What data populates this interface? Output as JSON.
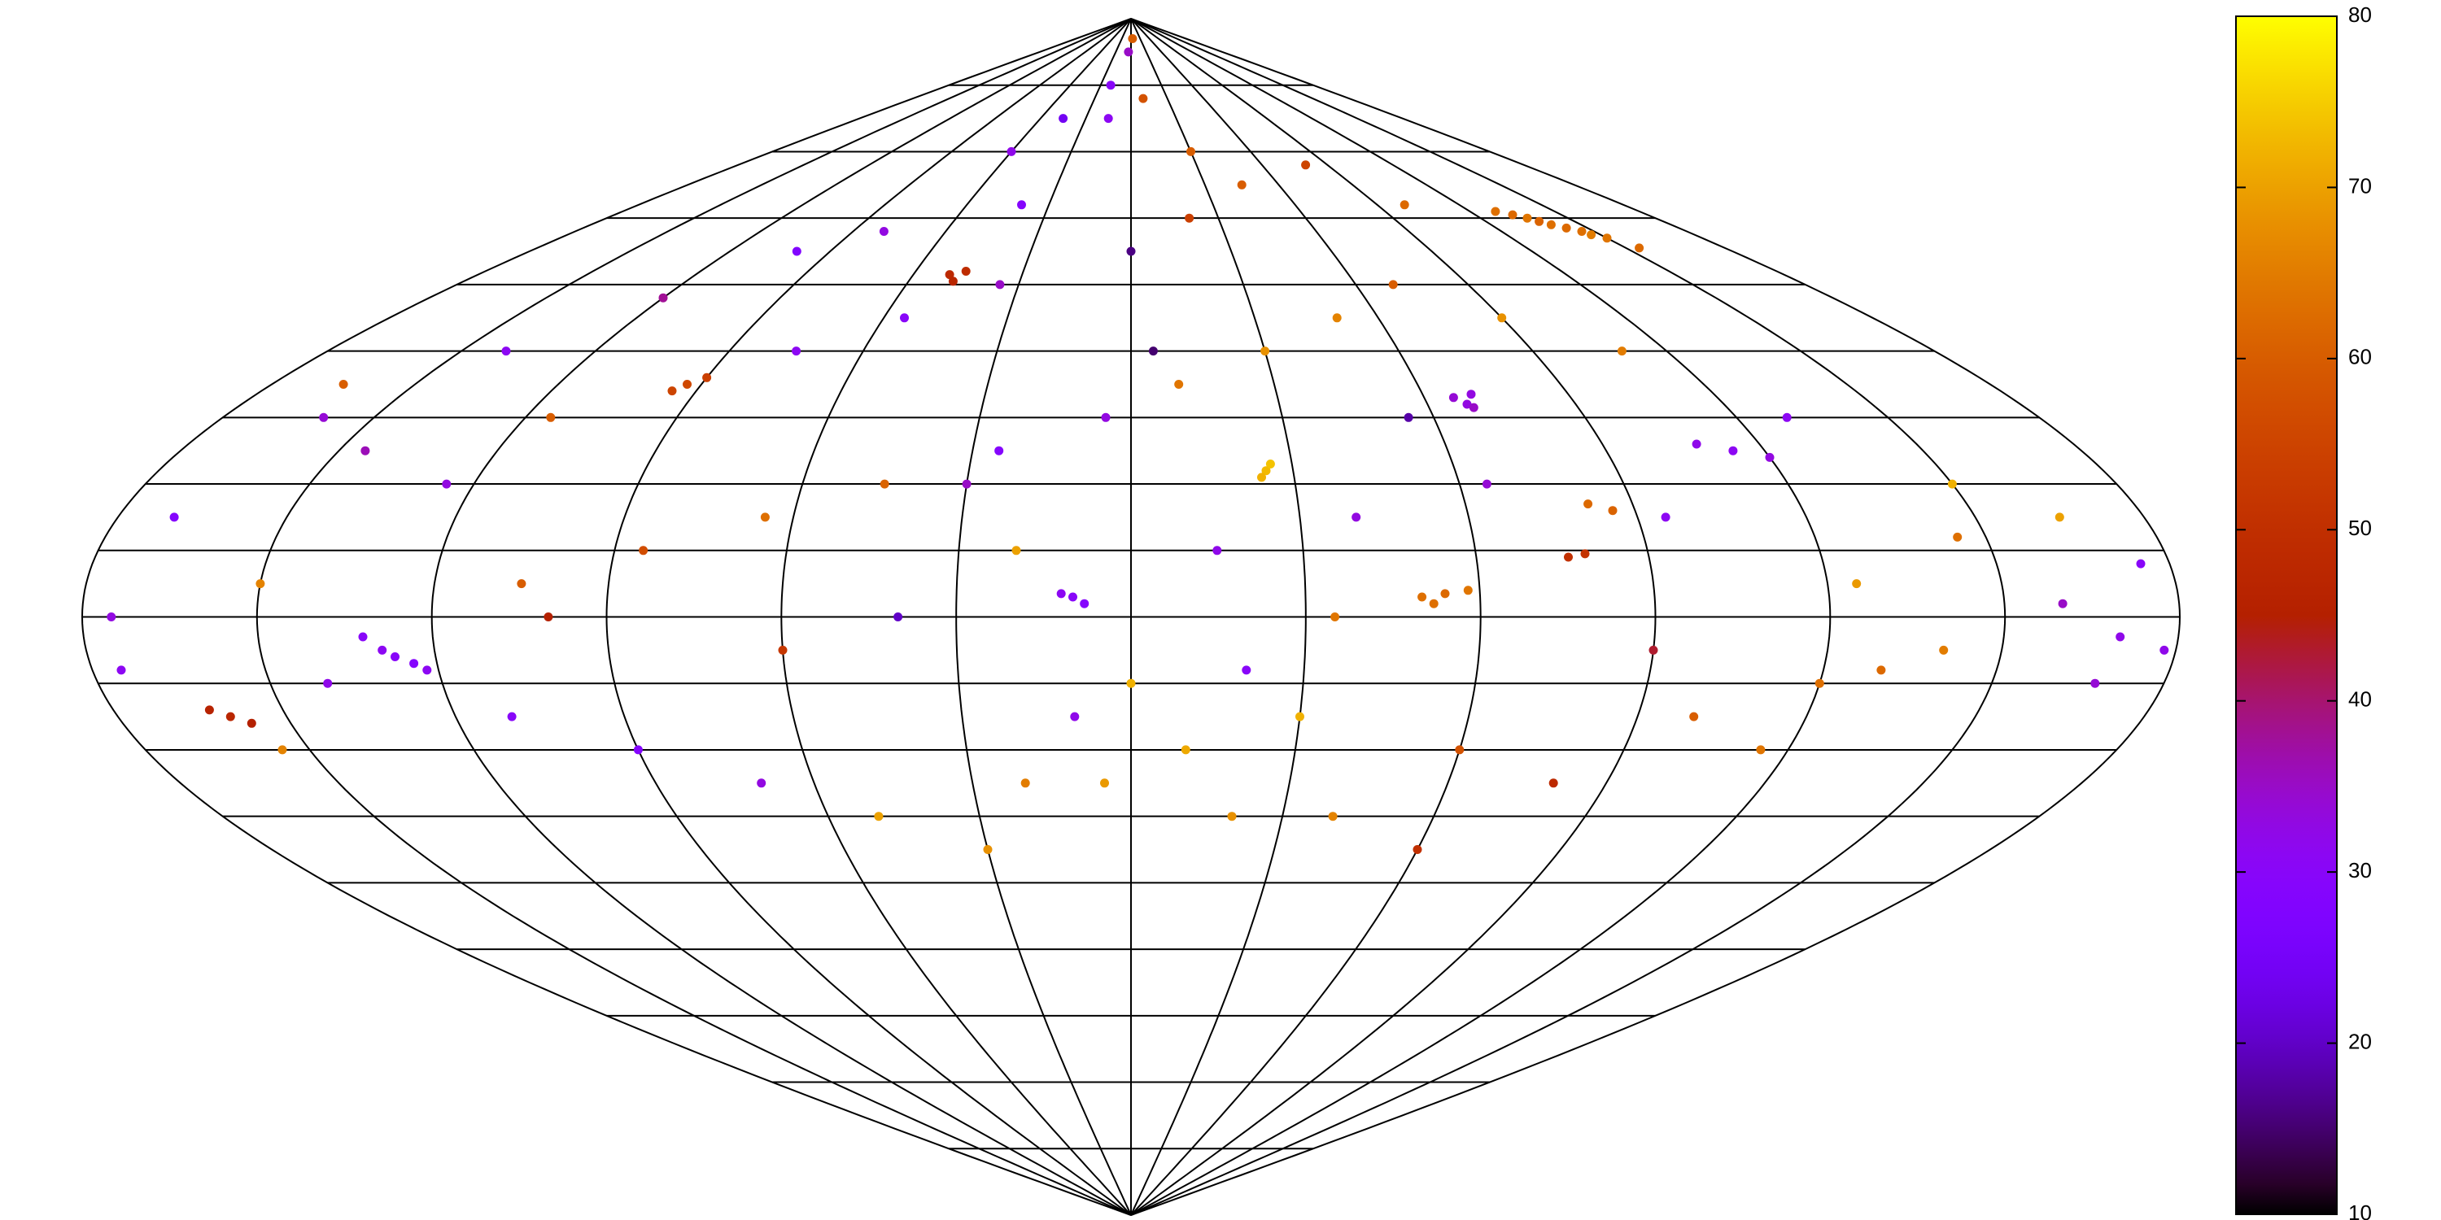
{
  "chart_data": {
    "type": "scatter",
    "projection": "sinusoidal",
    "colormap": "gnuplot",
    "xlim": [
      -180,
      180
    ],
    "ylim": [
      -90,
      90
    ],
    "meridians": [
      -180,
      -150,
      -120,
      -90,
      -60,
      -30,
      0,
      30,
      60,
      90,
      120,
      150,
      180
    ],
    "parallels": [
      -80,
      -70,
      -60,
      -50,
      -40,
      -30,
      -20,
      -10,
      0,
      10,
      20,
      30,
      40,
      50,
      60,
      70,
      80
    ],
    "clim": [
      10,
      80
    ],
    "cticks": [
      10,
      20,
      30,
      40,
      50,
      60,
      70,
      80
    ],
    "x": [
      129,
      133,
      136,
      140,
      143,
      146,
      150,
      154,
      138,
      147,
      66,
      68,
      70,
      69,
      -132,
      -129,
      -127,
      -124,
      -122,
      -163,
      -160,
      -157,
      -50,
      -48,
      -46,
      -95,
      -93,
      -90,
      25,
      26,
      24,
      50,
      54,
      58,
      52,
      108,
      114,
      120,
      76,
      79,
      82,
      86,
      -10,
      -8,
      -12,
      -20,
      -15,
      10,
      30,
      -60,
      -40,
      -80,
      -100,
      -120,
      -140,
      -160,
      -170,
      -175,
      -150,
      -140,
      -110,
      -90,
      -70,
      -50,
      -30,
      -20,
      -10,
      0,
      10,
      20,
      30,
      40,
      60,
      80,
      100,
      120,
      140,
      160,
      170,
      175,
      165,
      150,
      130,
      110,
      90,
      70,
      50,
      30,
      10,
      -5,
      -25,
      -45,
      -65,
      -85,
      -105,
      -125,
      -145,
      -115,
      -75,
      -55,
      -35,
      0,
      20,
      45,
      80,
      100,
      -5,
      5,
      -30,
      -20,
      15,
      35,
      40,
      65,
      95,
      125,
      145,
      -155,
      -100,
      60,
      20,
      -5,
      115,
      -165,
      -175,
      178,
      168,
      -60,
      -40,
      5,
      -45,
      55,
      90,
      130
    ],
    "y": [
      61,
      60.5,
      60,
      59,
      58.5,
      58,
      57,
      55.5,
      59.5,
      57.5,
      33,
      32,
      33.5,
      31.5,
      -3,
      -5,
      -6,
      -7,
      -8,
      -14,
      -15,
      -16,
      51.5,
      50.5,
      52,
      34,
      35,
      36,
      22,
      23,
      21,
      3,
      3.5,
      4,
      2,
      26,
      25,
      24,
      9,
      9.5,
      17,
      16,
      3,
      2,
      3.5,
      80,
      75,
      78,
      70,
      70,
      62,
      58,
      55,
      48,
      40,
      30,
      15,
      0,
      5,
      -10,
      -15,
      -20,
      -25,
      -30,
      -35,
      -25,
      -15,
      -10,
      -20,
      -8,
      -15,
      -30,
      -20,
      -25,
      -15,
      -10,
      -5,
      2,
      -3,
      8,
      15,
      20,
      30,
      40,
      45,
      50,
      45,
      40,
      35,
      30,
      25,
      20,
      15,
      10,
      5,
      20,
      25,
      30,
      40,
      45,
      50,
      55,
      60,
      65,
      68,
      62,
      85,
      87,
      20,
      10,
      10,
      0,
      15,
      20,
      15,
      5,
      12,
      -20,
      0,
      -35,
      -30,
      -25,
      -20,
      35,
      -8,
      -5,
      -10,
      -5,
      0,
      40,
      75,
      30,
      -5,
      -8
    ],
    "values": [
      63,
      62,
      64,
      63,
      62,
      63,
      64,
      62,
      61,
      65,
      34,
      33,
      33,
      35,
      30,
      31,
      30,
      29,
      31,
      46,
      47,
      45,
      48,
      47,
      49,
      55,
      56,
      54,
      73,
      74,
      72,
      63,
      62,
      64,
      63,
      32,
      31,
      33,
      50,
      51,
      62,
      61,
      30,
      29,
      31,
      30,
      31,
      58,
      60,
      32,
      29,
      33,
      28,
      38,
      31,
      34,
      29,
      33,
      66,
      32,
      30,
      29,
      33,
      70,
      68,
      65,
      32,
      72,
      71,
      30,
      72,
      66,
      58,
      48,
      60,
      63,
      65,
      35,
      32,
      30,
      70,
      72,
      31,
      65,
      68,
      60,
      66,
      68,
      64,
      33,
      29,
      61,
      63,
      57,
      60,
      33,
      36,
      60,
      31,
      30,
      35,
      16,
      54,
      60,
      55,
      62,
      35,
      60,
      35,
      70,
      32,
      64,
      33,
      34,
      31,
      69,
      63,
      66,
      45,
      50,
      68,
      69,
      64,
      60,
      31,
      32,
      34,
      52,
      20,
      15,
      24,
      18,
      43,
      62
    ]
  }
}
